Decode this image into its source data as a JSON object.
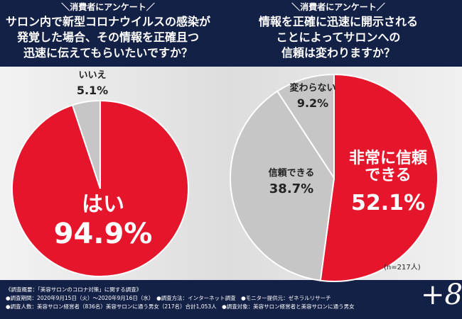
{
  "chart_data": [
    {
      "type": "pie",
      "subtitle": "＼消費者にアンケート／",
      "title": [
        "サロン内で新型コロナウイルスの感染が",
        "発覚した場合、その情報を正確且つ",
        "迅速に伝えてもらいたいですか？"
      ],
      "categories": [
        "はい",
        "いいえ"
      ],
      "values": [
        94.9,
        5.1
      ],
      "value_labels": [
        "94.9%",
        "5.1%"
      ],
      "colors": [
        "#e5162c",
        "#c6c6c6"
      ]
    },
    {
      "type": "pie",
      "subtitle": "＼消費者にアンケート／",
      "title": [
        "情報を正確に迅速に開示される",
        "ことによってサロンへの",
        "信頼は変わりますか？"
      ],
      "categories": [
        "非常に信頼できる",
        "信頼できる",
        "変わらない"
      ],
      "values": [
        52.1,
        38.7,
        9.2
      ],
      "value_labels": [
        "52.1%",
        "38.7%",
        "9.2%"
      ],
      "colors": [
        "#e5162c",
        "#c6c6c6",
        "#c6c6c6"
      ]
    }
  ],
  "footer": {
    "sample": "(n=217人)",
    "logo": "+8",
    "notes": [
      "《調査概要：「美容サロンのコロナ対策」に関する調査》",
      "●調査期間：2020年9月15日（火）～2020年9月16日（水）　●調査方法：インターネット調査　●モニター提供元：ゼネラルリサーチ",
      "●調査人数：美容サロン経営者（836名）美容サロンに通う男女（217名）合計1,053人　●調査対象：美容サロン経営者と美容サロンに通う男女"
    ]
  }
}
